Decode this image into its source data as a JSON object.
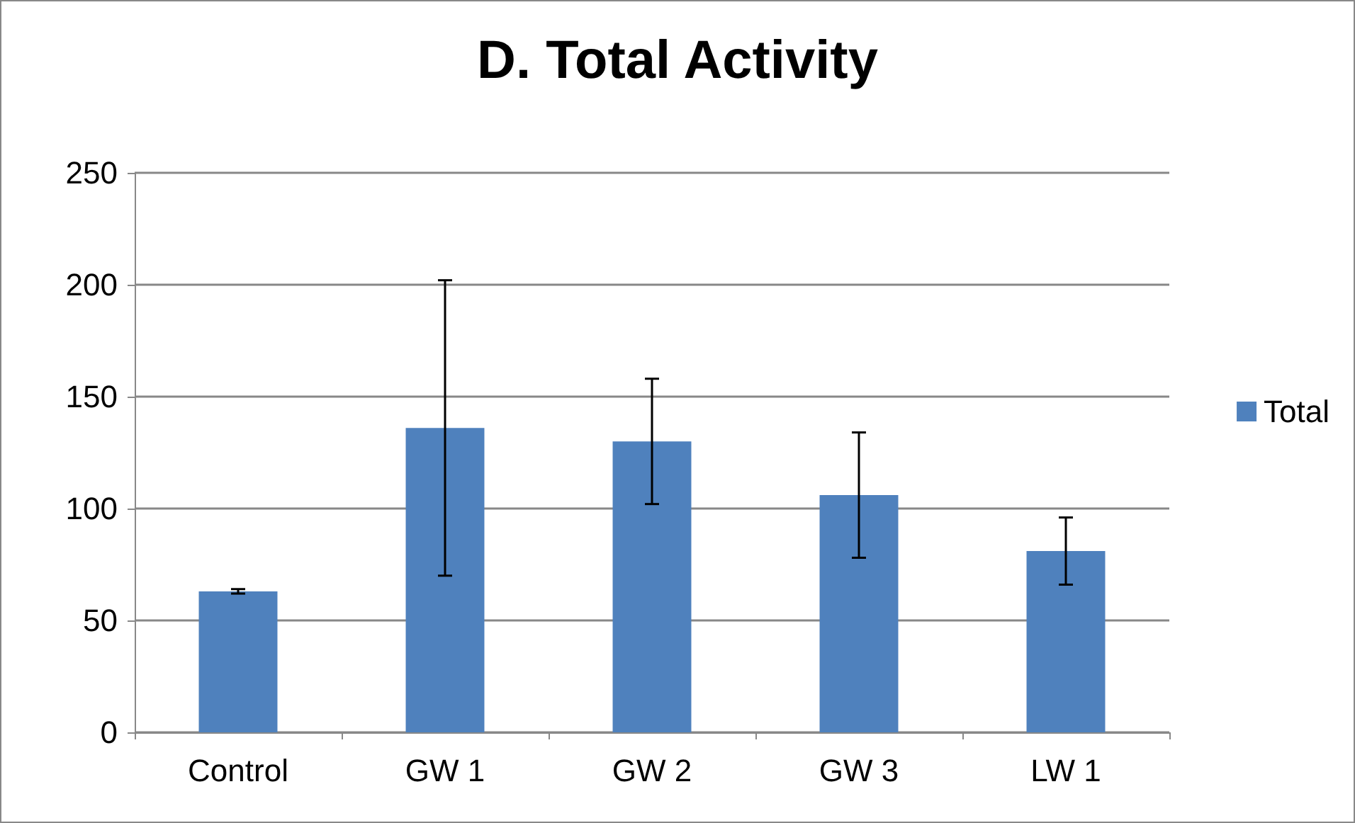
{
  "chart_data": {
    "type": "bar",
    "title": "D. Total Activity",
    "categories": [
      "Control",
      "GW 1",
      "GW 2",
      "GW 3",
      "LW 1"
    ],
    "series": [
      {
        "name": "Total",
        "color": "#4f81bd",
        "values": [
          63,
          136,
          130,
          106,
          81
        ],
        "errors": [
          1,
          66,
          28,
          28,
          15
        ]
      }
    ],
    "ylim": [
      0,
      250
    ],
    "yticks": [
      0,
      50,
      100,
      150,
      200,
      250
    ],
    "grid": "y",
    "legend": "right"
  }
}
